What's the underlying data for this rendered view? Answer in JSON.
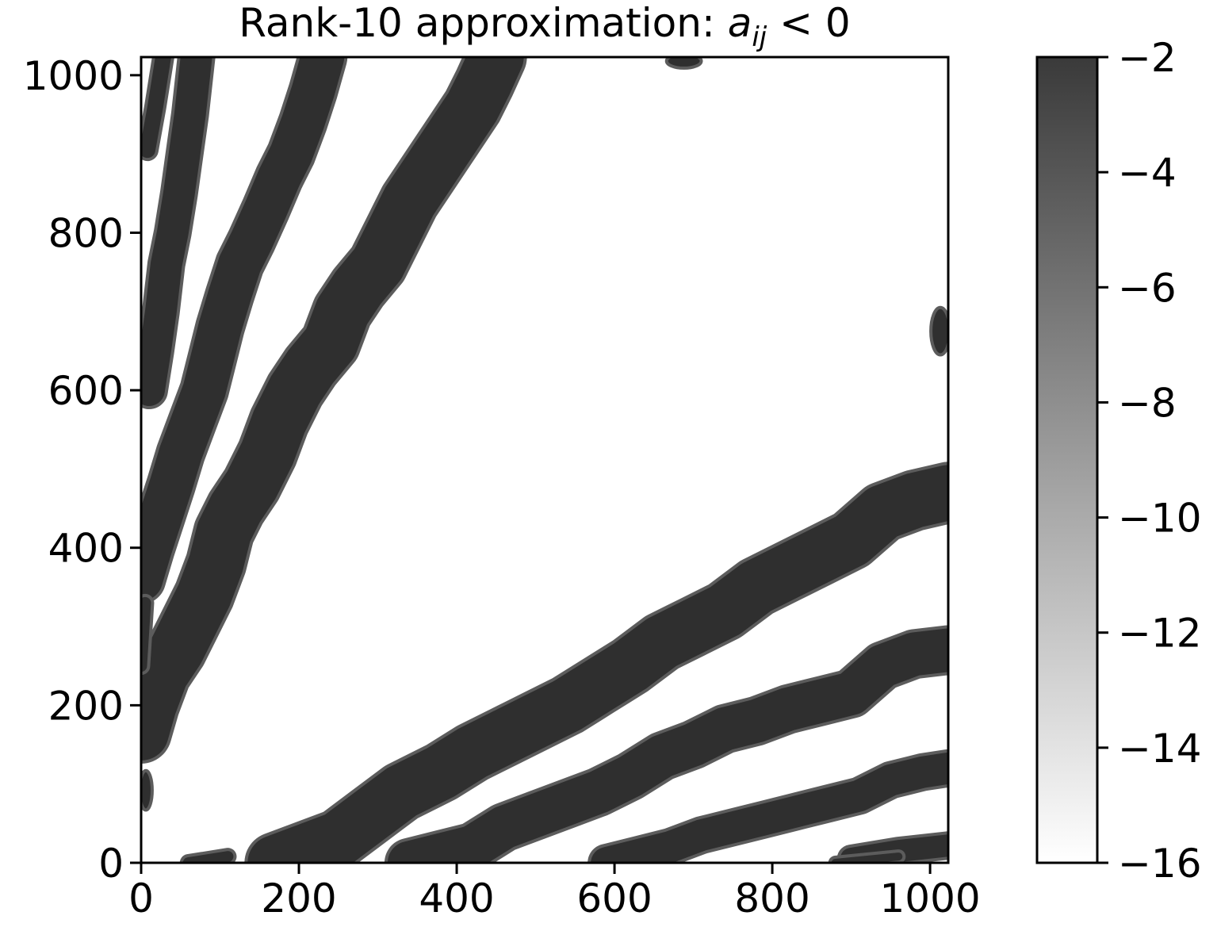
{
  "chart_data": {
    "type": "heatmap",
    "title": {
      "prefix": "Rank-10 approximation: ",
      "math_var": "a",
      "math_sub": "ij",
      "math_rel": " < 0"
    },
    "xlabel": "",
    "ylabel": "",
    "xlim": [
      0,
      1023
    ],
    "ylim": [
      0,
      1023
    ],
    "xticks": [
      0,
      200,
      400,
      600,
      800,
      1000
    ],
    "yticks": [
      0,
      200,
      400,
      600,
      800,
      1000
    ],
    "xtick_labels": [
      "0",
      "200",
      "400",
      "600",
      "800",
      "1000"
    ],
    "ytick_labels": [
      "0",
      "200",
      "400",
      "600",
      "800",
      "1000"
    ],
    "grid": false,
    "colormap": "gray",
    "colorbar": {
      "range": [
        -16,
        -2
      ],
      "ticks": [
        -2,
        -4,
        -6,
        -8,
        -10,
        -12,
        -14,
        -16
      ],
      "tick_labels": [
        "−2",
        "−4",
        "−6",
        "−8",
        "−10",
        "−12",
        "−14",
        "−16"
      ],
      "top_color": "#3a3a3a",
      "bottom_color": "#ffffff"
    },
    "band_color": "#2f2f2f",
    "band_edge_color": "#5c5c5c",
    "bands": [
      {
        "name": "upper-band-1",
        "points": [
          [
            0,
            165
          ],
          [
            10,
            200
          ],
          [
            25,
            240
          ],
          [
            45,
            270
          ],
          [
            60,
            300
          ],
          [
            80,
            340
          ],
          [
            95,
            380
          ],
          [
            105,
            420
          ],
          [
            120,
            450
          ],
          [
            140,
            480
          ],
          [
            160,
            520
          ],
          [
            175,
            560
          ],
          [
            195,
            600
          ],
          [
            215,
            630
          ],
          [
            240,
            660
          ],
          [
            255,
            700
          ],
          [
            275,
            730
          ],
          [
            300,
            760
          ],
          [
            320,
            800
          ],
          [
            340,
            840
          ],
          [
            360,
            870
          ],
          [
            380,
            900
          ],
          [
            400,
            930
          ],
          [
            420,
            960
          ],
          [
            435,
            990
          ],
          [
            450,
            1023
          ]
        ],
        "width": 70
      },
      {
        "name": "upper-band-2",
        "points": [
          [
            0,
            360
          ],
          [
            12,
            400
          ],
          [
            25,
            440
          ],
          [
            38,
            480
          ],
          [
            50,
            520
          ],
          [
            65,
            560
          ],
          [
            80,
            600
          ],
          [
            90,
            640
          ],
          [
            100,
            680
          ],
          [
            112,
            720
          ],
          [
            125,
            760
          ],
          [
            140,
            790
          ],
          [
            158,
            830
          ],
          [
            175,
            870
          ],
          [
            190,
            900
          ],
          [
            205,
            940
          ],
          [
            218,
            980
          ],
          [
            230,
            1023
          ]
        ],
        "width": 55
      },
      {
        "name": "upper-band-3",
        "points": [
          [
            10,
            600
          ],
          [
            18,
            650
          ],
          [
            25,
            700
          ],
          [
            32,
            760
          ],
          [
            40,
            800
          ],
          [
            48,
            850
          ],
          [
            55,
            900
          ],
          [
            62,
            950
          ],
          [
            70,
            1023
          ]
        ],
        "width": 40
      },
      {
        "name": "upper-band-4",
        "points": [
          [
            0,
            250
          ],
          [
            5,
            330
          ]
        ],
        "width": 15
      },
      {
        "name": "upper-band-5",
        "points": [
          [
            8,
            905
          ],
          [
            18,
            960
          ],
          [
            28,
            1023
          ]
        ],
        "width": 20
      },
      {
        "name": "lower-band-1",
        "points": [
          [
            170,
            0
          ],
          [
            210,
            15
          ],
          [
            250,
            30
          ],
          [
            290,
            60
          ],
          [
            330,
            90
          ],
          [
            380,
            115
          ],
          [
            420,
            140
          ],
          [
            460,
            160
          ],
          [
            500,
            180
          ],
          [
            540,
            200
          ],
          [
            580,
            225
          ],
          [
            620,
            250
          ],
          [
            660,
            280
          ],
          [
            700,
            300
          ],
          [
            740,
            320
          ],
          [
            780,
            350
          ],
          [
            820,
            370
          ],
          [
            860,
            390
          ],
          [
            900,
            410
          ],
          [
            940,
            445
          ],
          [
            980,
            460
          ],
          [
            1023,
            470
          ]
        ],
        "width": 70
      },
      {
        "name": "lower-band-2",
        "points": [
          [
            340,
            0
          ],
          [
            380,
            10
          ],
          [
            420,
            20
          ],
          [
            460,
            45
          ],
          [
            500,
            60
          ],
          [
            540,
            75
          ],
          [
            580,
            90
          ],
          [
            620,
            110
          ],
          [
            660,
            135
          ],
          [
            700,
            150
          ],
          [
            740,
            170
          ],
          [
            780,
            180
          ],
          [
            820,
            195
          ],
          [
            860,
            205
          ],
          [
            900,
            215
          ],
          [
            940,
            250
          ],
          [
            980,
            265
          ],
          [
            1023,
            270
          ]
        ],
        "width": 55
      },
      {
        "name": "lower-band-3",
        "points": [
          [
            590,
            0
          ],
          [
            630,
            10
          ],
          [
            670,
            20
          ],
          [
            710,
            35
          ],
          [
            750,
            45
          ],
          [
            790,
            55
          ],
          [
            830,
            65
          ],
          [
            870,
            75
          ],
          [
            910,
            85
          ],
          [
            950,
            105
          ],
          [
            990,
            115
          ],
          [
            1023,
            120
          ]
        ],
        "width": 40
      },
      {
        "name": "lower-band-4",
        "points": [
          [
            900,
            5
          ],
          [
            960,
            15
          ],
          [
            1023,
            22
          ]
        ],
        "width": 28
      },
      {
        "name": "lower-band-5",
        "points": [
          [
            60,
            0
          ],
          [
            110,
            8
          ]
        ],
        "width": 14
      },
      {
        "name": "lower-band-6",
        "points": [
          [
            880,
            0
          ],
          [
            960,
            8
          ]
        ],
        "width": 10
      }
    ],
    "blobs": [
      {
        "name": "left-edge-blob",
        "x": 6,
        "y": 92,
        "rx": 8,
        "ry": 25
      },
      {
        "name": "top-edge-blob",
        "x": 688,
        "y": 1018,
        "rx": 22,
        "ry": 9
      },
      {
        "name": "right-edge-blob",
        "x": 1013,
        "y": 675,
        "rx": 12,
        "ry": 30
      }
    ]
  }
}
